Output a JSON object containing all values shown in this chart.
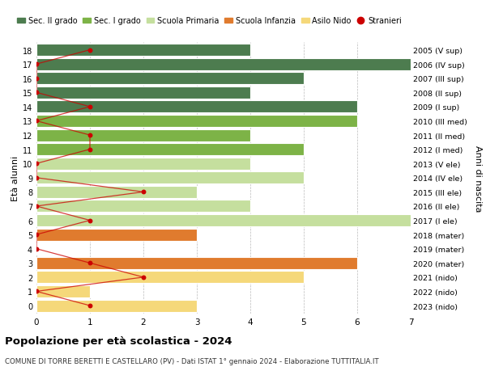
{
  "ages": [
    18,
    17,
    16,
    15,
    14,
    13,
    12,
    11,
    10,
    9,
    8,
    7,
    6,
    5,
    4,
    3,
    2,
    1,
    0
  ],
  "right_labels": [
    "2005 (V sup)",
    "2006 (IV sup)",
    "2007 (III sup)",
    "2008 (II sup)",
    "2009 (I sup)",
    "2010 (III med)",
    "2011 (II med)",
    "2012 (I med)",
    "2013 (V ele)",
    "2014 (IV ele)",
    "2015 (III ele)",
    "2016 (II ele)",
    "2017 (I ele)",
    "2018 (mater)",
    "2019 (mater)",
    "2020 (mater)",
    "2021 (nido)",
    "2022 (nido)",
    "2023 (nido)"
  ],
  "bar_values": [
    4,
    7,
    5,
    4,
    6,
    6,
    4,
    5,
    4,
    5,
    3,
    4,
    7,
    3,
    0,
    6,
    5,
    1,
    3
  ],
  "bar_colors": [
    "#4d7c4f",
    "#4d7c4f",
    "#4d7c4f",
    "#4d7c4f",
    "#4d7c4f",
    "#7db347",
    "#7db347",
    "#7db347",
    "#c5df9e",
    "#c5df9e",
    "#c5df9e",
    "#c5df9e",
    "#c5df9e",
    "#e07b2e",
    "#e07b2e",
    "#e07b2e",
    "#f5d87a",
    "#f5d87a",
    "#f5d87a"
  ],
  "stranieri_values": [
    1,
    0,
    0,
    0,
    1,
    0,
    1,
    1,
    0,
    0,
    2,
    0,
    1,
    0,
    0,
    1,
    2,
    0,
    1
  ],
  "stranieri_color": "#cc0000",
  "legend_labels": [
    "Sec. II grado",
    "Sec. I grado",
    "Scuola Primaria",
    "Scuola Infanzia",
    "Asilo Nido",
    "Stranieri"
  ],
  "legend_colors": [
    "#4d7c4f",
    "#7db347",
    "#c5df9e",
    "#e07b2e",
    "#f5d87a",
    "#cc0000"
  ],
  "ylabel_left": "Età alunni",
  "ylabel_right": "Anni di nascita",
  "title": "Popolazione per età scolastica - 2024",
  "subtitle": "COMUNE DI TORRE BERETTI E CASTELLARO (PV) - Dati ISTAT 1° gennaio 2024 - Elaborazione TUTTITALIA.IT",
  "xlim": [
    0,
    7
  ],
  "background_color": "#ffffff",
  "bar_height": 0.85,
  "grid_color": "#bbbbbb"
}
